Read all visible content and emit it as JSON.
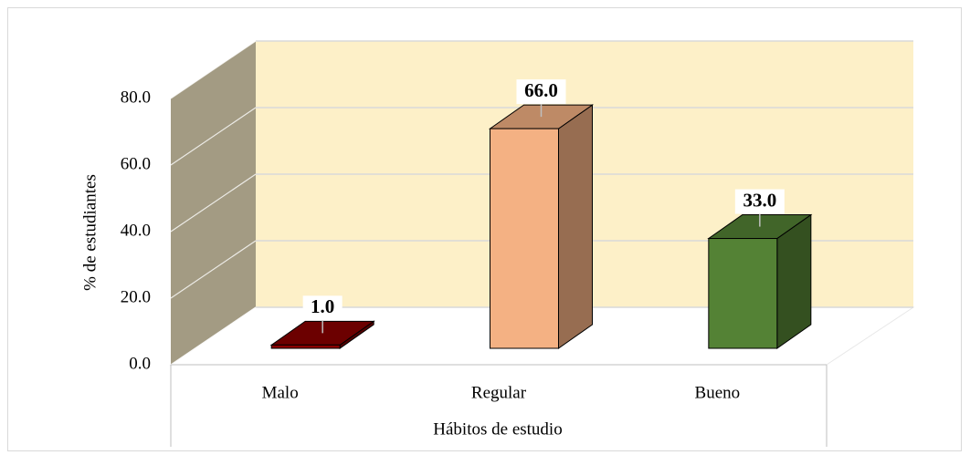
{
  "chart_data": {
    "type": "bar3d",
    "categories": [
      "Malo",
      "Regular",
      "Bueno"
    ],
    "values": [
      1,
      66,
      33
    ],
    "value_labels": [
      "1.0",
      "66.0",
      "33.0"
    ],
    "colors": [
      "#8b0000",
      "#f4b183",
      "#548235"
    ],
    "x_label": "Hábitos de estudio",
    "y_label": "% de estudiantes",
    "ylim": [
      0,
      80
    ],
    "yticks": [
      {
        "value": 0,
        "label": "0.0"
      },
      {
        "value": 20,
        "label": "20.0"
      },
      {
        "value": 40,
        "label": "40.0"
      },
      {
        "value": 60,
        "label": "60.0"
      },
      {
        "value": 80,
        "label": "80.0"
      }
    ],
    "grid": true
  }
}
